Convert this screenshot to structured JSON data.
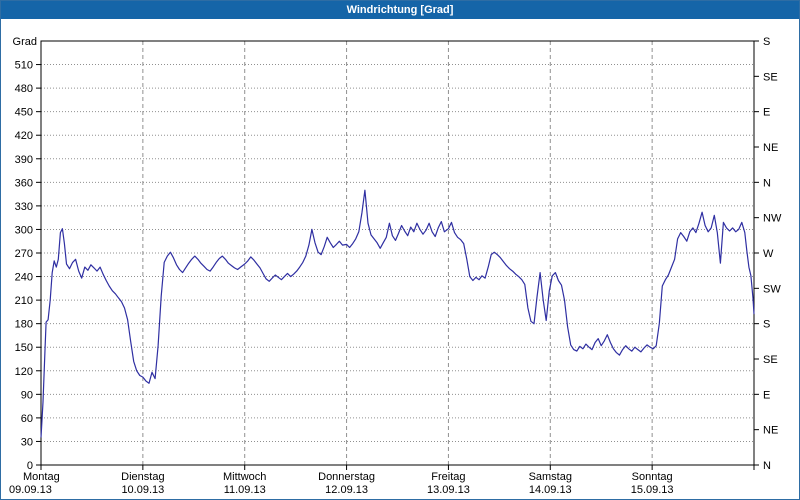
{
  "window": {
    "title": "Windrichtung [Grad]"
  },
  "colors": {
    "title_bar_bg": "#1565a8",
    "title_text": "#ffffff",
    "window_border": "#2e6da4",
    "series_line": "#2f2fa2",
    "grid": "#909090",
    "axis": "#000000",
    "background": "#ffffff"
  },
  "chart_data": {
    "type": "line",
    "title": "Windrichtung [Grad]",
    "ylabel_left": "Grad",
    "ylabel_right_unit": "compass",
    "ylim": [
      0,
      540
    ],
    "xlim": [
      0,
      7
    ],
    "grid": {
      "horizontal": "dotted every 30 deg",
      "vertical": "dashed at day boundaries"
    },
    "legend": "none",
    "y_left_ticks": [
      0,
      30,
      60,
      90,
      120,
      150,
      180,
      210,
      240,
      270,
      300,
      330,
      360,
      390,
      420,
      450,
      480,
      510
    ],
    "y_right_ticks": [
      {
        "deg": 0,
        "label": "N"
      },
      {
        "deg": 45,
        "label": "NE"
      },
      {
        "deg": 90,
        "label": "E"
      },
      {
        "deg": 135,
        "label": "SE"
      },
      {
        "deg": 180,
        "label": "S"
      },
      {
        "deg": 225,
        "label": "SW"
      },
      {
        "deg": 270,
        "label": "W"
      },
      {
        "deg": 315,
        "label": "NW"
      },
      {
        "deg": 360,
        "label": "N"
      },
      {
        "deg": 405,
        "label": "NE"
      },
      {
        "deg": 450,
        "label": "E"
      },
      {
        "deg": 495,
        "label": "SE"
      },
      {
        "deg": 540,
        "label": "S"
      }
    ],
    "x_days": [
      {
        "name": "Montag",
        "date": "09.09.13"
      },
      {
        "name": "Dienstag",
        "date": "10.09.13"
      },
      {
        "name": "Mittwoch",
        "date": "11.09.13"
      },
      {
        "name": "Donnerstag",
        "date": "12.09.13"
      },
      {
        "name": "Freitag",
        "date": "13.09.13"
      },
      {
        "name": "Samstag",
        "date": "14.09.13"
      },
      {
        "name": "Sonntag",
        "date": "15.09.13"
      }
    ],
    "series": [
      {
        "name": "Windrichtung",
        "color": "#2f2fa2",
        "points": [
          [
            0.0,
            35
          ],
          [
            0.02,
            80
          ],
          [
            0.04,
            150
          ],
          [
            0.05,
            182
          ],
          [
            0.07,
            185
          ],
          [
            0.09,
            210
          ],
          [
            0.11,
            245
          ],
          [
            0.13,
            260
          ],
          [
            0.15,
            252
          ],
          [
            0.17,
            262
          ],
          [
            0.19,
            296
          ],
          [
            0.21,
            301
          ],
          [
            0.23,
            282
          ],
          [
            0.25,
            256
          ],
          [
            0.28,
            250
          ],
          [
            0.31,
            258
          ],
          [
            0.34,
            262
          ],
          [
            0.37,
            247
          ],
          [
            0.4,
            238
          ],
          [
            0.43,
            252
          ],
          [
            0.46,
            248
          ],
          [
            0.49,
            255
          ],
          [
            0.52,
            251
          ],
          [
            0.55,
            247
          ],
          [
            0.58,
            252
          ],
          [
            0.61,
            243
          ],
          [
            0.64,
            235
          ],
          [
            0.67,
            228
          ],
          [
            0.7,
            222
          ],
          [
            0.73,
            218
          ],
          [
            0.76,
            213
          ],
          [
            0.79,
            208
          ],
          [
            0.82,
            200
          ],
          [
            0.85,
            185
          ],
          [
            0.88,
            158
          ],
          [
            0.91,
            132
          ],
          [
            0.94,
            120
          ],
          [
            0.97,
            114
          ],
          [
            1.0,
            112
          ],
          [
            1.03,
            107
          ],
          [
            1.06,
            104
          ],
          [
            1.09,
            118
          ],
          [
            1.12,
            110
          ],
          [
            1.15,
            152
          ],
          [
            1.18,
            215
          ],
          [
            1.21,
            258
          ],
          [
            1.24,
            266
          ],
          [
            1.27,
            271
          ],
          [
            1.3,
            264
          ],
          [
            1.33,
            255
          ],
          [
            1.36,
            249
          ],
          [
            1.39,
            245
          ],
          [
            1.42,
            251
          ],
          [
            1.45,
            257
          ],
          [
            1.48,
            262
          ],
          [
            1.51,
            266
          ],
          [
            1.54,
            262
          ],
          [
            1.57,
            257
          ],
          [
            1.6,
            253
          ],
          [
            1.63,
            249
          ],
          [
            1.66,
            247
          ],
          [
            1.69,
            252
          ],
          [
            1.72,
            258
          ],
          [
            1.75,
            263
          ],
          [
            1.78,
            266
          ],
          [
            1.81,
            262
          ],
          [
            1.84,
            257
          ],
          [
            1.87,
            254
          ],
          [
            1.9,
            251
          ],
          [
            1.93,
            249
          ],
          [
            1.96,
            252
          ],
          [
            2.0,
            256
          ],
          [
            2.03,
            260
          ],
          [
            2.06,
            265
          ],
          [
            2.09,
            261
          ],
          [
            2.12,
            256
          ],
          [
            2.15,
            251
          ],
          [
            2.18,
            244
          ],
          [
            2.21,
            237
          ],
          [
            2.24,
            234
          ],
          [
            2.27,
            238
          ],
          [
            2.3,
            242
          ],
          [
            2.33,
            239
          ],
          [
            2.36,
            236
          ],
          [
            2.39,
            240
          ],
          [
            2.42,
            244
          ],
          [
            2.45,
            240
          ],
          [
            2.48,
            243
          ],
          [
            2.51,
            247
          ],
          [
            2.54,
            252
          ],
          [
            2.57,
            258
          ],
          [
            2.6,
            266
          ],
          [
            2.63,
            280
          ],
          [
            2.66,
            300
          ],
          [
            2.69,
            283
          ],
          [
            2.72,
            271
          ],
          [
            2.75,
            268
          ],
          [
            2.78,
            278
          ],
          [
            2.81,
            290
          ],
          [
            2.84,
            283
          ],
          [
            2.87,
            277
          ],
          [
            2.9,
            281
          ],
          [
            2.93,
            285
          ],
          [
            2.96,
            280
          ],
          [
            3.0,
            281
          ],
          [
            3.03,
            277
          ],
          [
            3.06,
            282
          ],
          [
            3.09,
            288
          ],
          [
            3.12,
            297
          ],
          [
            3.15,
            321
          ],
          [
            3.18,
            350
          ],
          [
            3.21,
            308
          ],
          [
            3.24,
            293
          ],
          [
            3.27,
            288
          ],
          [
            3.3,
            283
          ],
          [
            3.33,
            276
          ],
          [
            3.36,
            283
          ],
          [
            3.39,
            290
          ],
          [
            3.42,
            308
          ],
          [
            3.45,
            292
          ],
          [
            3.48,
            286
          ],
          [
            3.51,
            295
          ],
          [
            3.54,
            305
          ],
          [
            3.57,
            298
          ],
          [
            3.6,
            292
          ],
          [
            3.63,
            303
          ],
          [
            3.66,
            297
          ],
          [
            3.69,
            308
          ],
          [
            3.72,
            300
          ],
          [
            3.75,
            294
          ],
          [
            3.78,
            299
          ],
          [
            3.81,
            308
          ],
          [
            3.84,
            297
          ],
          [
            3.87,
            291
          ],
          [
            3.9,
            302
          ],
          [
            3.93,
            310
          ],
          [
            3.96,
            297
          ],
          [
            4.0,
            301
          ],
          [
            4.03,
            309
          ],
          [
            4.06,
            296
          ],
          [
            4.09,
            290
          ],
          [
            4.12,
            287
          ],
          [
            4.15,
            282
          ],
          [
            4.18,
            262
          ],
          [
            4.21,
            240
          ],
          [
            4.24,
            235
          ],
          [
            4.27,
            239
          ],
          [
            4.3,
            236
          ],
          [
            4.33,
            241
          ],
          [
            4.36,
            238
          ],
          [
            4.39,
            252
          ],
          [
            4.42,
            268
          ],
          [
            4.45,
            271
          ],
          [
            4.48,
            268
          ],
          [
            4.51,
            264
          ],
          [
            4.54,
            259
          ],
          [
            4.57,
            254
          ],
          [
            4.6,
            250
          ],
          [
            4.63,
            247
          ],
          [
            4.66,
            243
          ],
          [
            4.69,
            240
          ],
          [
            4.72,
            236
          ],
          [
            4.75,
            230
          ],
          [
            4.78,
            200
          ],
          [
            4.81,
            183
          ],
          [
            4.84,
            180
          ],
          [
            4.87,
            214
          ],
          [
            4.9,
            245
          ],
          [
            4.93,
            210
          ],
          [
            4.96,
            184
          ],
          [
            4.99,
            222
          ],
          [
            5.02,
            241
          ],
          [
            5.05,
            245
          ],
          [
            5.08,
            235
          ],
          [
            5.11,
            229
          ],
          [
            5.14,
            210
          ],
          [
            5.17,
            176
          ],
          [
            5.2,
            153
          ],
          [
            5.23,
            147
          ],
          [
            5.26,
            145
          ],
          [
            5.29,
            151
          ],
          [
            5.32,
            148
          ],
          [
            5.35,
            154
          ],
          [
            5.38,
            150
          ],
          [
            5.41,
            147
          ],
          [
            5.44,
            156
          ],
          [
            5.47,
            161
          ],
          [
            5.5,
            152
          ],
          [
            5.53,
            158
          ],
          [
            5.56,
            166
          ],
          [
            5.59,
            156
          ],
          [
            5.62,
            148
          ],
          [
            5.65,
            143
          ],
          [
            5.68,
            140
          ],
          [
            5.71,
            147
          ],
          [
            5.74,
            152
          ],
          [
            5.77,
            148
          ],
          [
            5.8,
            145
          ],
          [
            5.83,
            150
          ],
          [
            5.86,
            147
          ],
          [
            5.89,
            144
          ],
          [
            5.92,
            149
          ],
          [
            5.95,
            153
          ],
          [
            5.98,
            150
          ],
          [
            6.01,
            148
          ],
          [
            6.04,
            152
          ],
          [
            6.07,
            180
          ],
          [
            6.1,
            228
          ],
          [
            6.13,
            236
          ],
          [
            6.16,
            242
          ],
          [
            6.19,
            252
          ],
          [
            6.22,
            262
          ],
          [
            6.25,
            288
          ],
          [
            6.28,
            296
          ],
          [
            6.31,
            291
          ],
          [
            6.34,
            285
          ],
          [
            6.37,
            297
          ],
          [
            6.4,
            302
          ],
          [
            6.43,
            296
          ],
          [
            6.46,
            308
          ],
          [
            6.49,
            322
          ],
          [
            6.52,
            305
          ],
          [
            6.55,
            297
          ],
          [
            6.58,
            302
          ],
          [
            6.61,
            318
          ],
          [
            6.64,
            296
          ],
          [
            6.67,
            257
          ],
          [
            6.7,
            309
          ],
          [
            6.73,
            302
          ],
          [
            6.76,
            298
          ],
          [
            6.79,
            302
          ],
          [
            6.82,
            297
          ],
          [
            6.85,
            300
          ],
          [
            6.88,
            309
          ],
          [
            6.91,
            296
          ],
          [
            6.93,
            272
          ],
          [
            6.95,
            252
          ],
          [
            6.97,
            241
          ],
          [
            6.99,
            212
          ],
          [
            7.0,
            192
          ]
        ]
      }
    ]
  }
}
